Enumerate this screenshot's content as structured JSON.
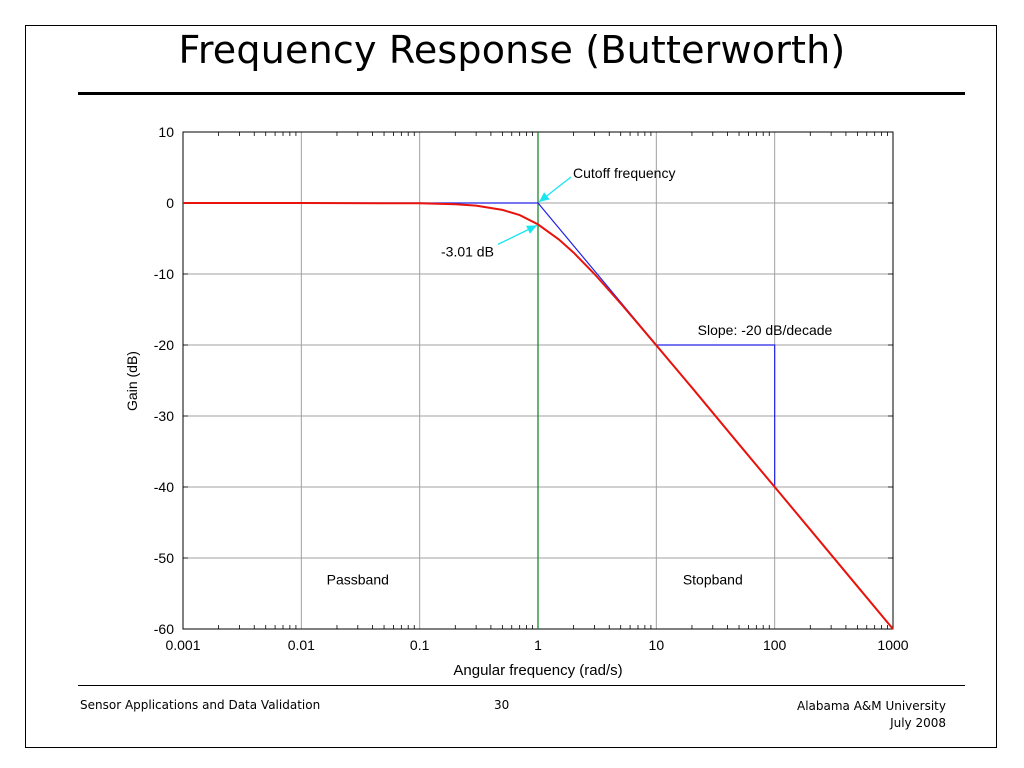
{
  "slide": {
    "title": "Frequency Response (Butterworth)",
    "footer_left": "Sensor Applications and Data Validation",
    "page_number": "30",
    "footer_right_line1": "Alabama A&M University",
    "footer_right_line2": "July 2008"
  },
  "chart_data": {
    "type": "line",
    "xlabel": "Angular frequency (rad/s)",
    "ylabel": "Gain (dB)",
    "x_scale": "log",
    "xlim": [
      0.001,
      1000
    ],
    "ylim": [
      -60,
      10
    ],
    "x_ticks": [
      0.001,
      0.01,
      0.1,
      1,
      10,
      100,
      1000
    ],
    "x_tick_labels": [
      "0.001",
      "0.01",
      "0.1",
      "1",
      "10",
      "100",
      "1000"
    ],
    "y_ticks": [
      10,
      0,
      -10,
      -20,
      -30,
      -40,
      -50,
      -60
    ],
    "y_tick_labels": [
      "10",
      "0",
      "-10",
      "-20",
      "-30",
      "-40",
      "-50",
      "-60"
    ],
    "grid": true,
    "colors": {
      "response": "#e8130c",
      "asymptote": "#2323e6",
      "cutoff_line": "#1a8a2e",
      "annotation_arrow": "#18e5f0",
      "grid": "#a0a0a0"
    },
    "series": [
      {
        "x": [
          0.001,
          0.01,
          0.1,
          0.2,
          0.3,
          0.5,
          0.7,
          1,
          1.5,
          2,
          3,
          5,
          7,
          10,
          20,
          50,
          100,
          200,
          500,
          1000
        ],
        "y": [
          0,
          0,
          -0.04,
          -0.17,
          -0.37,
          -0.97,
          -1.71,
          -3.01,
          -5.12,
          -6.99,
          -10.0,
          -14.15,
          -17.0,
          -20.04,
          -26.02,
          -33.98,
          -40.0,
          -46.02,
          -53.98,
          -60.0
        ]
      },
      {
        "x": [
          0.001,
          1,
          1000
        ],
        "y": [
          0,
          0,
          -60
        ]
      }
    ],
    "cutoff_x": 1,
    "slope_triangle": {
      "x": [
        10,
        100
      ],
      "y": [
        -20,
        -40
      ]
    },
    "annotations": [
      {
        "text": "Cutoff frequency",
        "x": 1,
        "y": 0
      },
      {
        "text": "-3.01 dB",
        "x": 1,
        "y": -3.01
      },
      {
        "text": "Slope: -20 dB/decade",
        "x": 100,
        "y": -20
      },
      {
        "text": "Passband",
        "x": 0.03,
        "y": -53
      },
      {
        "text": "Stopband",
        "x": 30,
        "y": -53
      }
    ]
  }
}
